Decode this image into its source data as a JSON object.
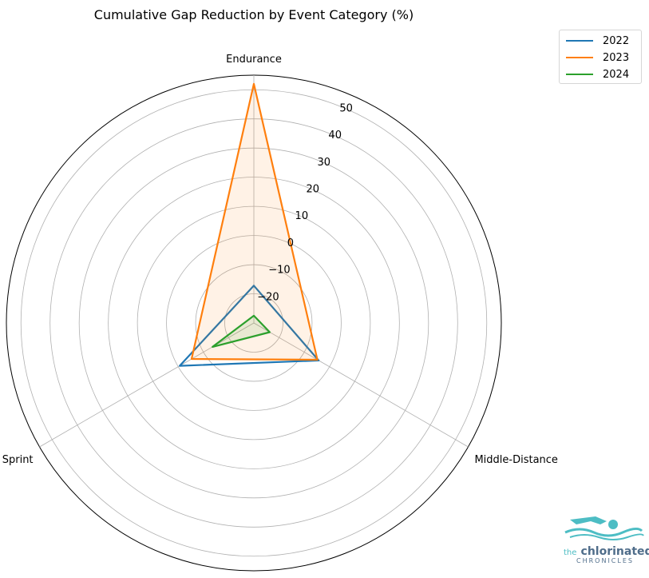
{
  "chart_data": {
    "type": "radar",
    "title": "Cumulative Gap Reduction by Event Category (%)",
    "categories": [
      "Endurance",
      "Middle-Distance",
      "Sprint"
    ],
    "rlim": [
      -30,
      55
    ],
    "rticks": [
      -20,
      -10,
      0,
      10,
      20,
      30,
      40,
      50
    ],
    "rtick_labels": [
      "−20",
      "−10",
      "0",
      "10",
      "20",
      "30",
      "40",
      "50"
    ],
    "grid": true,
    "legend_position": "top-right",
    "series": [
      {
        "name": "2022",
        "color": "#1f77b4",
        "values": [
          -17.2,
          -4.3,
          -0.6
        ],
        "fill": false
      },
      {
        "name": "2023",
        "color": "#ff7f0e",
        "values": [
          52.0,
          -4.8,
          -5.3
        ],
        "fill": true
      },
      {
        "name": "2024",
        "color": "#2ca02c",
        "values": [
          -27.5,
          -23.7,
          -13.6
        ],
        "fill": true
      }
    ]
  },
  "logo": {
    "the": "the",
    "main": "chlorinated",
    "sub": "CHRONICLES"
  }
}
